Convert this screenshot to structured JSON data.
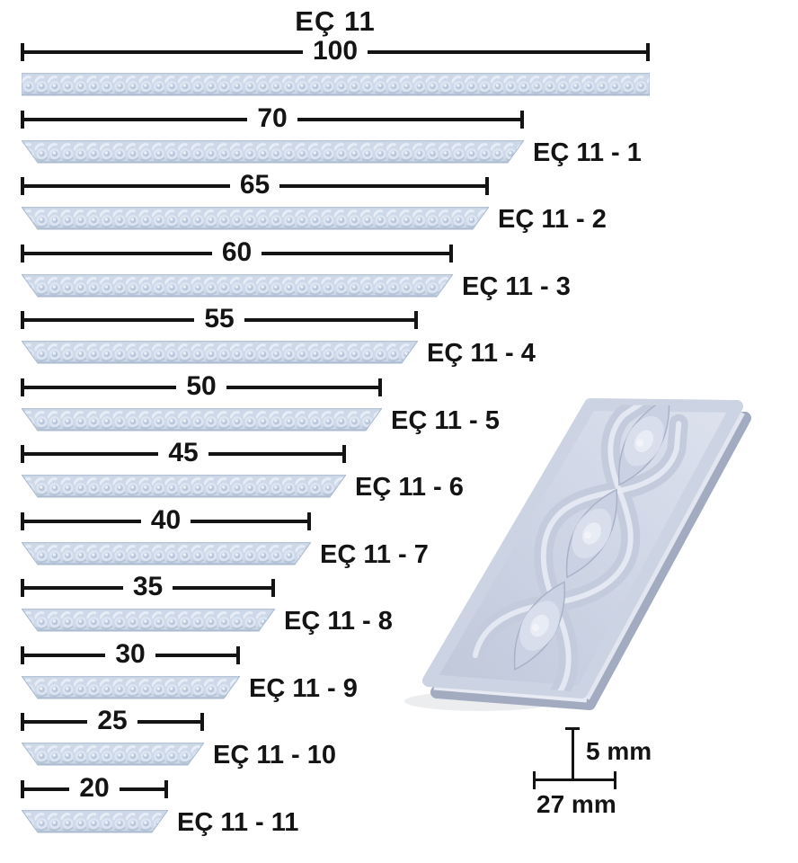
{
  "title": "EÇ 11",
  "rows": [
    {
      "size": 100,
      "label": ""
    },
    {
      "size": 70,
      "label": "EÇ 11 - 1"
    },
    {
      "size": 65,
      "label": "EÇ 11 - 2"
    },
    {
      "size": 60,
      "label": "EÇ 11 - 3"
    },
    {
      "size": 55,
      "label": "EÇ 11 - 4"
    },
    {
      "size": 50,
      "label": "EÇ 11 - 5"
    },
    {
      "size": 45,
      "label": "EÇ 11 - 6"
    },
    {
      "size": 40,
      "label": "EÇ 11 - 7"
    },
    {
      "size": 35,
      "label": "EÇ 11 - 8"
    },
    {
      "size": 30,
      "label": "EÇ 11 - 9"
    },
    {
      "size": 25,
      "label": "EÇ 11 - 10"
    },
    {
      "size": 20,
      "label": "EÇ 11 - 11"
    }
  ],
  "cross_section": {
    "height_label": "5 mm",
    "width_label": "27 mm"
  },
  "colors": {
    "ink": "#141414",
    "background": "#ffffff",
    "strip_base": "#cdd8e8",
    "strip_edge": "#a9b9cf",
    "render_base": "#c9d0e0"
  }
}
